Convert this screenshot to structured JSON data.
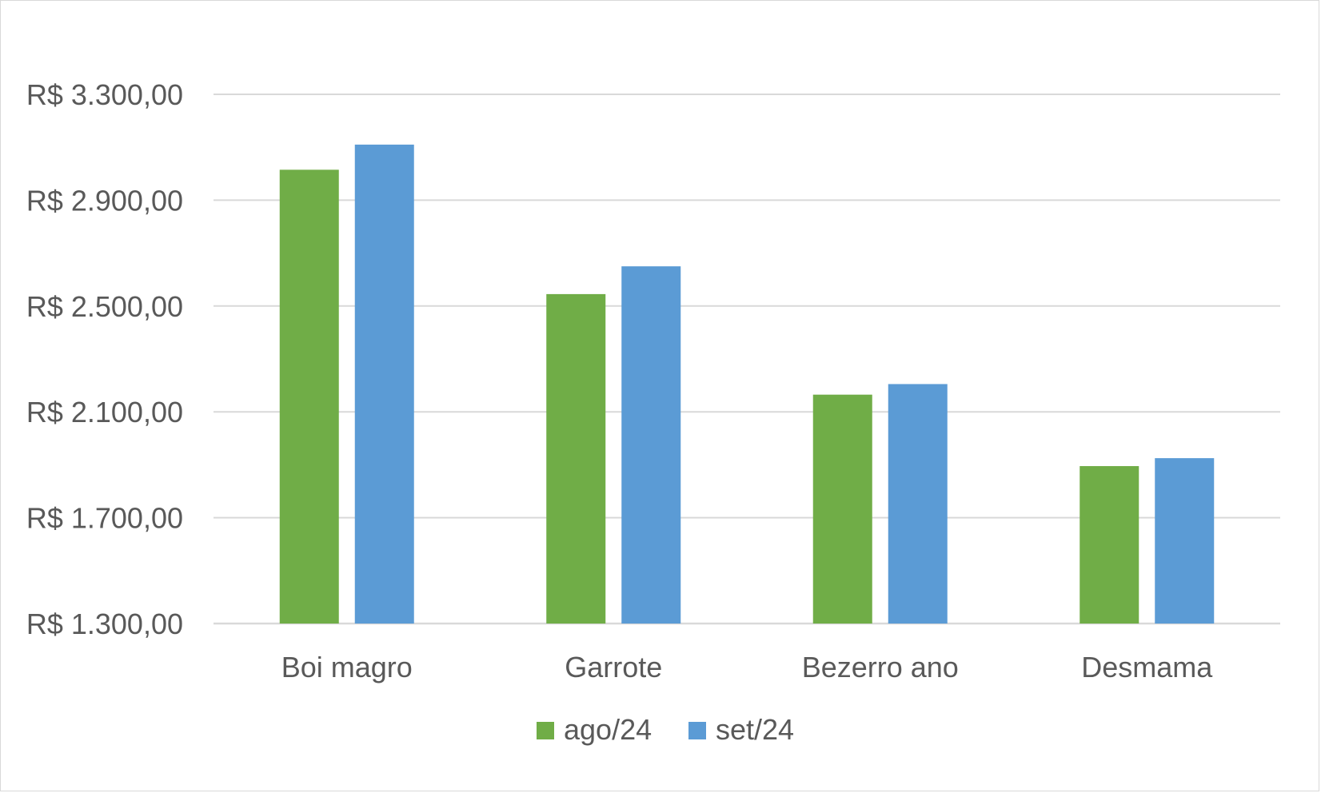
{
  "chart_data": {
    "type": "bar",
    "categories": [
      "Boi magro",
      "Garrote",
      "Bezerro ano",
      "Desmama"
    ],
    "series": [
      {
        "name": "ago/24",
        "values": [
          3015,
          2545,
          2165,
          1895
        ],
        "color": "#70ad47"
      },
      {
        "name": "set/24",
        "values": [
          3110,
          2650,
          2205,
          1925
        ],
        "color": "#5b9bd5"
      }
    ],
    "ylim": [
      1300,
      3300
    ],
    "yticks": [
      1300,
      1700,
      2100,
      2500,
      2900,
      3300
    ],
    "ytick_labels": [
      "R$ 1.300,00",
      "R$ 1.700,00",
      "R$ 2.100,00",
      "R$ 2.500,00",
      "R$ 2.900,00",
      "R$ 3.300,00"
    ],
    "grid": true,
    "legend": "bottom",
    "gridline_color": "#d9d9d9",
    "text_color": "#595959"
  }
}
